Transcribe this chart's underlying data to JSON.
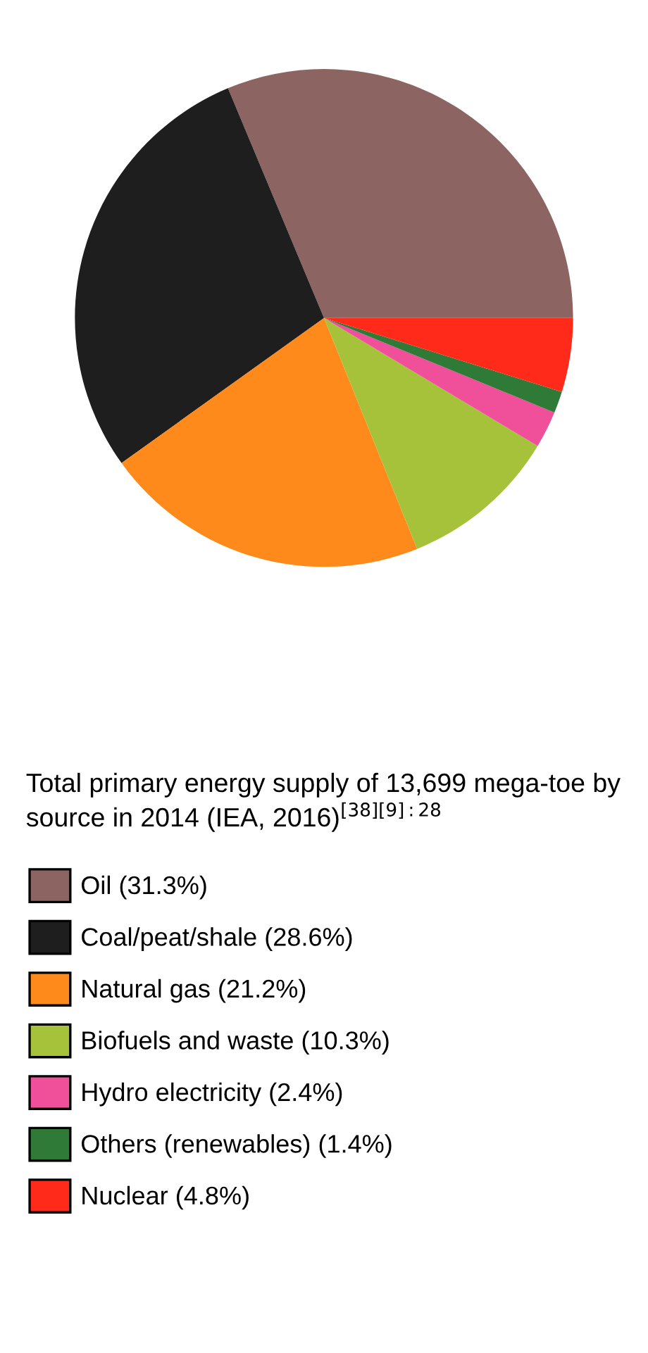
{
  "chart_data": {
    "type": "pie",
    "title": "Total primary energy supply of 13,699 mega-toe by source in 2014 (IEA, 2016)$^{[38][9]:28}$",
    "categories": [
      "Oil (31.3%)",
      "Coal/peat/shale (28.6%)",
      "Natural gas (21.2%)",
      "Biofuels and waste (10.3%)",
      "Hydro electricity (2.4%)",
      "Others (renewables) (1.4%)",
      "Nuclear (4.8%)"
    ],
    "values": [
      31.3,
      28.6,
      21.2,
      10.3,
      2.4,
      1.4,
      4.8
    ],
    "colors": [
      "#8c6462",
      "#1e1e1e",
      "#ff8a1c",
      "#a6c23a",
      "#f04f9a",
      "#2e7a36",
      "#ff2a1a"
    ],
    "legend": "bottom"
  }
}
